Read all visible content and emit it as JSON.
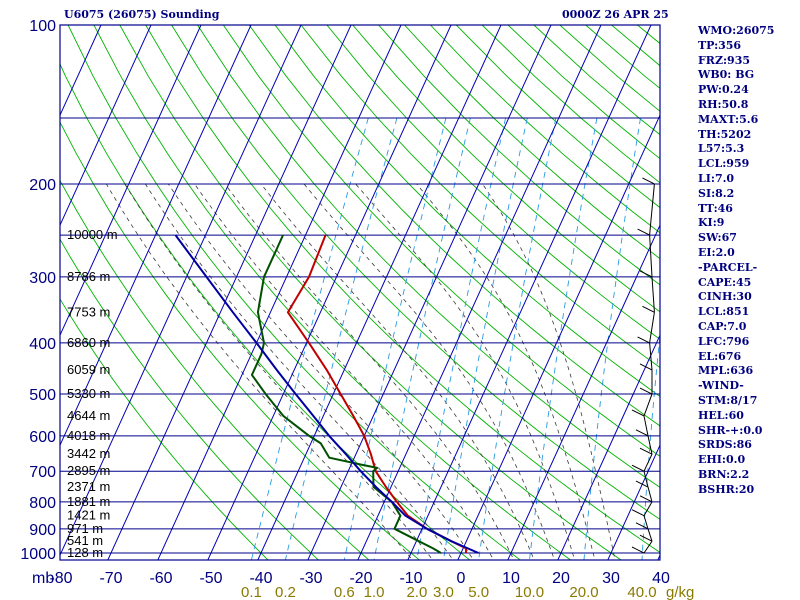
{
  "header": {
    "station": "U6075 (26075) Sounding",
    "time": "0000Z 26 APR 25"
  },
  "indices": [
    "WMO:26075",
    "TP:356",
    "FRZ:935",
    "WB0: BG",
    "PW:0.24",
    "RH:50.8",
    "MAXT:5.6",
    "TH:5202",
    "L57:5.3",
    "LCL:959",
    "LI:7.0",
    "SI:8.2",
    "TT:46",
    "KI:9",
    "SW:67",
    "EI:2.0",
    "-PARCEL-",
    "CAPE:45",
    "CINH:30",
    "LCL:851",
    "CAP:7.0",
    "LFC:796",
    "EL:676",
    "MPL:636",
    "-WIND-",
    "STM:8/17",
    "HEL:60",
    "SHR-+:0.0",
    "SRDS:86",
    "EHI:0.0",
    "BRN:2.2",
    "BSHR:20"
  ],
  "colors": {
    "frame": "#00008b",
    "isotherm": "#0000b4",
    "dry_adiabat": "#00b400",
    "moist_adiabat": "#3a3a3a",
    "mixing_ratio": "#2a9be0",
    "temperature": "#c00000",
    "dewpoint": "#005000",
    "parcel": "#0000a0",
    "mixing_label": "#8a7a00",
    "axis_text": "#000080"
  },
  "chart_data": {
    "type": "line",
    "title": "U6075 (26075) Sounding",
    "xlabel": "",
    "ylabel": "mb",
    "x_ticks": [
      -80,
      -70,
      -60,
      -50,
      -40,
      -30,
      -20,
      -10,
      0,
      10,
      20,
      30,
      40
    ],
    "p_ticks": [
      100,
      200,
      300,
      400,
      500,
      600,
      700,
      800,
      900,
      1000
    ],
    "height_labels": [
      {
        "p": 250,
        "label": "10000 m"
      },
      {
        "p": 300,
        "label": "8786 m"
      },
      {
        "p": 350,
        "label": "7753 m"
      },
      {
        "p": 400,
        "label": "6860 m"
      },
      {
        "p": 450,
        "label": "6059 m"
      },
      {
        "p": 500,
        "label": "5330 m"
      },
      {
        "p": 550,
        "label": "4644 m"
      },
      {
        "p": 600,
        "label": "4018 m"
      },
      {
        "p": 650,
        "label": "3442 m"
      },
      {
        "p": 700,
        "label": "2895 m"
      },
      {
        "p": 750,
        "label": "2371 m"
      },
      {
        "p": 800,
        "label": "1881 m"
      },
      {
        "p": 850,
        "label": "1421 m"
      },
      {
        "p": 900,
        "label": "971 m"
      },
      {
        "p": 950,
        "label": "541 m"
      },
      {
        "p": 1000,
        "label": "128 m"
      }
    ],
    "mixing_ratio_labels": [
      "0.1",
      "0.2",
      "0.6",
      "1.0",
      "2.0",
      "3.0",
      "5.0",
      "10.0",
      "20.0",
      "40.0"
    ],
    "mixing_ratio_unit": "g/kg",
    "series": [
      {
        "key": "temperature",
        "points": [
          [
            1000,
            1.0
          ],
          [
            980,
            0.6
          ],
          [
            950,
            -3.0
          ],
          [
            900,
            -9.0
          ],
          [
            850,
            -14.0
          ],
          [
            800,
            -17.5
          ],
          [
            750,
            -21.0
          ],
          [
            700,
            -24.5
          ],
          [
            650,
            -27.0
          ],
          [
            600,
            -30.0
          ],
          [
            550,
            -34.0
          ],
          [
            500,
            -38.5
          ],
          [
            450,
            -43.5
          ],
          [
            400,
            -49.5
          ],
          [
            350,
            -56.5
          ],
          [
            300,
            -55.5
          ],
          [
            250,
            -56.0
          ]
        ]
      },
      {
        "key": "dewpoint",
        "points": [
          [
            1000,
            -4.0
          ],
          [
            980,
            -6.0
          ],
          [
            950,
            -9.5
          ],
          [
            900,
            -15.5
          ],
          [
            850,
            -15.5
          ],
          [
            800,
            -18.5
          ],
          [
            750,
            -23.5
          ],
          [
            700,
            -25.0
          ],
          [
            690,
            -24.5
          ],
          [
            680,
            -28.0
          ],
          [
            660,
            -35.0
          ],
          [
            620,
            -38.0
          ],
          [
            600,
            -41.0
          ],
          [
            550,
            -48.0
          ],
          [
            500,
            -53.5
          ],
          [
            460,
            -58.0
          ],
          [
            420,
            -58.0
          ],
          [
            400,
            -58.5
          ],
          [
            350,
            -62.5
          ],
          [
            300,
            -64.5
          ],
          [
            270,
            -64.5
          ],
          [
            250,
            -64.5
          ]
        ]
      },
      {
        "key": "parcel",
        "points": [
          [
            1000,
            3.5
          ],
          [
            950,
            -3.0
          ],
          [
            900,
            -9.0
          ],
          [
            850,
            -14.5
          ],
          [
            800,
            -18.5
          ],
          [
            750,
            -23.0
          ],
          [
            700,
            -27.5
          ],
          [
            650,
            -32.0
          ],
          [
            600,
            -37.0
          ],
          [
            550,
            -42.0
          ],
          [
            500,
            -47.5
          ],
          [
            450,
            -53.5
          ],
          [
            400,
            -60.0
          ],
          [
            350,
            -67.5
          ],
          [
            300,
            -76.0
          ],
          [
            250,
            -86.0
          ]
        ]
      }
    ],
    "wind_barbs_p": [
      1000,
      950,
      900,
      850,
      800,
      750,
      700,
      650,
      600,
      550,
      500,
      450,
      400,
      350,
      300,
      250,
      200
    ]
  }
}
